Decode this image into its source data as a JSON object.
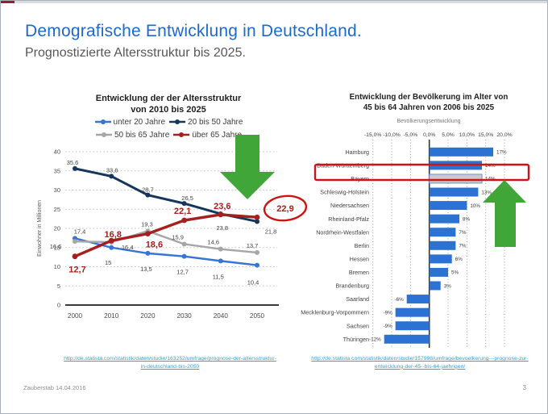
{
  "header": {
    "title": "Demografische Entwicklung in Deutschland.",
    "subtitle": "Prognostizierte Altersstruktur bis 2025."
  },
  "footer": {
    "left": "Zauberstab 14.04.2016",
    "page": "3"
  },
  "links": {
    "left": "http://de.statista.com/statistik/daten/studie/163252/umfrage/prognose-der-altersstruktur-in-deutschland-bis-2050",
    "right": "http://de.statista.com/statistik/daten/studie/157998/umfrage/bevoelkerung---prognose-zur-entwicklung-der-45--bis-64-jaehrigen/"
  },
  "colors": {
    "title_blue": "#1c69cf",
    "link_blue": "#38a0d6",
    "annotation_red": "#cc1414",
    "annotation_green": "#3fa637",
    "bar_blue": "#2c72d3",
    "highlight_gray": "#cbcbcb"
  },
  "chart_data": [
    {
      "type": "line",
      "title": "Entwicklung der der Altersstruktur von 2010 bis 2025",
      "title_lines": [
        "Entwicklung der der Altersstruktur",
        "von 2010 bis 2025"
      ],
      "x": [
        2000,
        2010,
        2020,
        2030,
        2040,
        2050
      ],
      "ylabel": "Einwohner in Millionen",
      "ylim": [
        0,
        40
      ],
      "ytick_step": 5,
      "grid": "horizontal-dotted",
      "legend_position": "top",
      "legend_rows": [
        [
          "unter 20 Jahre",
          "20 bis 50 Jahre"
        ],
        [
          "50 bis 65 Jahre",
          "über 65 Jahre"
        ]
      ],
      "series": [
        {
          "name": "unter 20 Jahre",
          "color": "#3575d3",
          "values": [
            17.4,
            15,
            13.5,
            12.7,
            11.5,
            10.4
          ],
          "labels": [
            "17,4",
            "15",
            "13,5",
            "12,7",
            "11,5",
            "10,4"
          ]
        },
        {
          "name": "20 bis 50 Jahre",
          "color": "#16365c",
          "values": [
            35.6,
            33.6,
            28.7,
            26.5,
            23.8,
            21.8
          ],
          "labels": [
            "35,6",
            "33,6",
            "28,7",
            "26,5",
            "23,8",
            "21,8"
          ]
        },
        {
          "name": "50 bis 65 Jahre",
          "color": "#a6a6a6",
          "values": [
            16.6,
            16.4,
            19.3,
            15.9,
            14.6,
            13.7
          ],
          "labels": [
            "16,6",
            "16,4",
            "19,3",
            "15,9",
            "14,6",
            "13,7"
          ]
        },
        {
          "name": "über 65 Jahre",
          "color": "#a61e1e",
          "emphasis": true,
          "values": [
            12.7,
            16.8,
            18.6,
            22.1,
            23.6,
            22.9
          ],
          "labels": [
            "12,7",
            "16,8",
            "18,6",
            "22,1",
            "23,6",
            "22,9"
          ]
        }
      ],
      "annotations": {
        "circled_value": "22,9",
        "green_arrow": "down"
      }
    },
    {
      "type": "bar",
      "orientation": "horizontal",
      "title": "Entwicklung der Bevölkerung im Alter von 45 bis 64 Jahren von 2006 bis 2025",
      "title_lines": [
        "Entwicklung der Bevölkerung im Alter von",
        "45 bis 64 Jahren von 2006 bis 2025"
      ],
      "subtitle": "Bevölkerungsentwicklung",
      "xlim": [
        -17,
        21
      ],
      "tick_values": [
        -15,
        -10,
        -5,
        0,
        5,
        10,
        15,
        20
      ],
      "xticks": [
        "-15,0%",
        "-10,0%",
        "-5,0%",
        "0,0%",
        "5,0%",
        "10,0%",
        "15,0%",
        "20,0%"
      ],
      "categories": [
        "Hamburg",
        "Baden-Württemberg",
        "Bayern",
        "Schleswig-Holstein",
        "Niedersachsen",
        "Rheinland-Pfalz",
        "Nordrhein-Westfalen",
        "Berlin",
        "Hessen",
        "Bremen",
        "Brandenburg",
        "Saarland",
        "Mecklenburg-Vorpommern",
        "Sachsen",
        "Thüringen"
      ],
      "values": [
        17,
        14,
        14,
        13,
        10,
        8,
        7,
        7,
        6,
        5,
        3,
        -6,
        -9,
        -9,
        -12
      ],
      "labels": [
        "17%",
        "14%",
        "14%",
        "13%",
        "10%",
        "8%",
        "7%",
        "7%",
        "6%",
        "5%",
        "3%",
        "-6%",
        "-9%",
        "-9%",
        "-12%"
      ],
      "bar_color": "#2c72d3",
      "highlighted_category": "Bayern",
      "highlight_fill": "#cbcbcb",
      "annotations": {
        "highlight_box_category": "Bayern",
        "green_arrow": "up"
      }
    }
  ]
}
